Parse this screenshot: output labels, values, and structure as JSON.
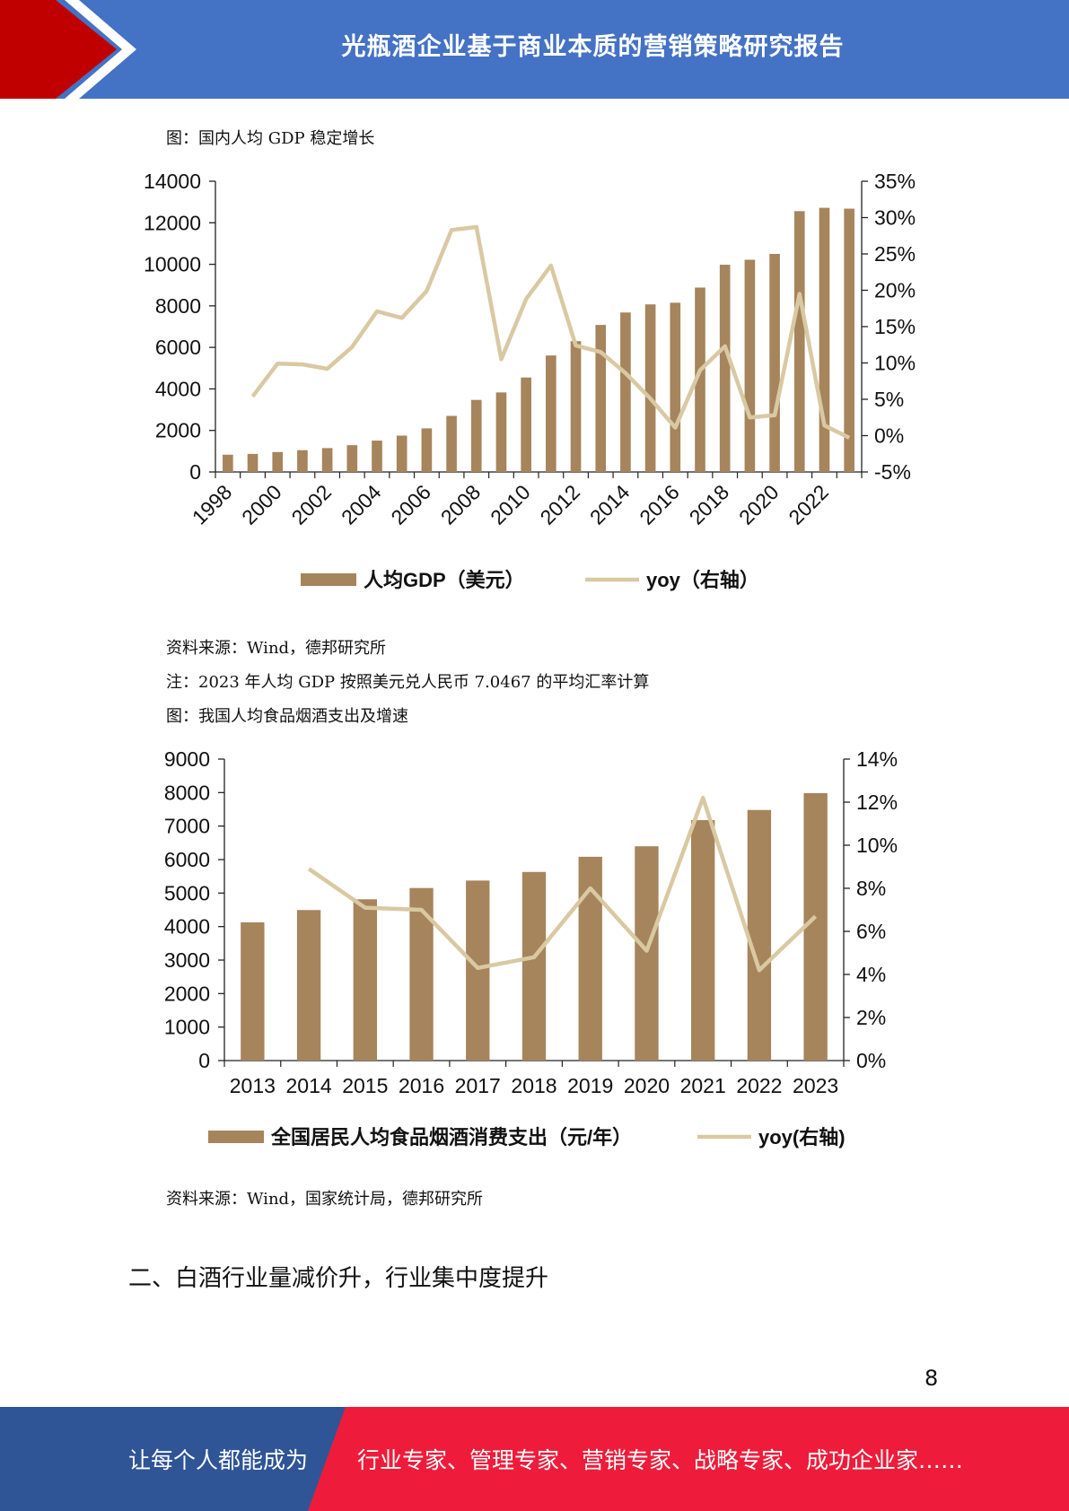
{
  "header": {
    "title": "光瓶酒企业基于商业本质的营销策略研究报告"
  },
  "figure1": {
    "caption": "图：国内人均 GDP 稳定增长",
    "source": "资料来源：Wind，德邦研究所",
    "note": "注：2023 年人均 GDP 按照美元兑人民币 7.0467 的平均汇率计算"
  },
  "figure2": {
    "caption": "图：我国人均食品烟酒支出及增速",
    "source": "资料来源：Wind，国家统计局，德邦研究所"
  },
  "section": {
    "title": "二、白酒行业量减价升，行业集中度提升"
  },
  "page_number": "8",
  "footer": {
    "left_text": "让每个人都能成为",
    "right_text": "行业专家、管理专家、营销专家、战略专家、成功企业家……"
  },
  "colors": {
    "header_blue": "#4472c4",
    "header_red": "#c00000",
    "bar": "#a6845c",
    "line": "#d9c9a3",
    "footer_blue": "#2f5597",
    "footer_red": "#ee1c3a"
  },
  "chart_data": [
    {
      "type": "bar",
      "categories": [
        "1998",
        "1999",
        "2000",
        "2001",
        "2002",
        "2003",
        "2004",
        "2005",
        "2006",
        "2007",
        "2008",
        "2009",
        "2010",
        "2011",
        "2012",
        "2013",
        "2014",
        "2015",
        "2016",
        "2017",
        "2018",
        "2019",
        "2020",
        "2021",
        "2022",
        "2023"
      ],
      "xtick_labels": [
        "1998",
        "2000",
        "2002",
        "2004",
        "2006",
        "2008",
        "2010",
        "2012",
        "2014",
        "2016",
        "2018",
        "2020",
        "2022"
      ],
      "series": [
        {
          "name": "人均GDP（美元）",
          "type": "bar",
          "axis": "left",
          "values": [
            830,
            870,
            960,
            1050,
            1150,
            1290,
            1510,
            1750,
            2100,
            2700,
            3470,
            3830,
            4550,
            5610,
            6300,
            7080,
            7680,
            8070,
            8150,
            8880,
            9980,
            10220,
            10500,
            12560,
            12720,
            12680
          ]
        },
        {
          "name": "yoy（右轴）",
          "type": "line",
          "axis": "right",
          "values": [
            null,
            5.4,
            9.9,
            9.8,
            9.2,
            12.2,
            17.1,
            16.2,
            19.9,
            28.3,
            28.7,
            10.5,
            18.8,
            23.4,
            12.4,
            11.5,
            8.6,
            5.1,
            1.1,
            9.0,
            12.3,
            2.5,
            2.8,
            19.5,
            1.4,
            -0.3
          ]
        }
      ],
      "ylim_left": [
        0,
        14000
      ],
      "yticks_left": [
        "0",
        "2000",
        "4000",
        "6000",
        "8000",
        "10000",
        "12000",
        "14000"
      ],
      "ylim_right": [
        -5,
        35
      ],
      "yticks_right": [
        "-5%",
        "0%",
        "5%",
        "10%",
        "15%",
        "20%",
        "25%",
        "30%",
        "35%"
      ],
      "legend": [
        "人均GDP（美元）",
        "yoy（右轴）"
      ],
      "legend_position": "bottom",
      "grid": false
    },
    {
      "type": "bar",
      "categories": [
        "2013",
        "2014",
        "2015",
        "2016",
        "2017",
        "2018",
        "2019",
        "2020",
        "2021",
        "2022",
        "2023"
      ],
      "series": [
        {
          "name": "全国居民人均食品烟酒消费支出（元/年）",
          "type": "bar",
          "axis": "left",
          "values": [
            4127,
            4494,
            4814,
            5151,
            5374,
            5631,
            6084,
            6397,
            7178,
            7481,
            7983
          ]
        },
        {
          "name": "yoy(右轴)",
          "type": "line",
          "axis": "right",
          "values": [
            null,
            8.9,
            7.1,
            7.0,
            4.3,
            4.8,
            8.0,
            5.1,
            12.2,
            4.2,
            6.7
          ]
        }
      ],
      "ylim_left": [
        0,
        9000
      ],
      "yticks_left": [
        "0",
        "1000",
        "2000",
        "3000",
        "4000",
        "5000",
        "6000",
        "7000",
        "8000",
        "9000"
      ],
      "ylim_right": [
        0,
        14
      ],
      "yticks_right": [
        "0%",
        "2%",
        "4%",
        "6%",
        "8%",
        "10%",
        "12%",
        "14%"
      ],
      "legend": [
        "全国居民人均食品烟酒消费支出（元/年）",
        "yoy(右轴)"
      ],
      "legend_position": "bottom",
      "grid": false
    }
  ]
}
